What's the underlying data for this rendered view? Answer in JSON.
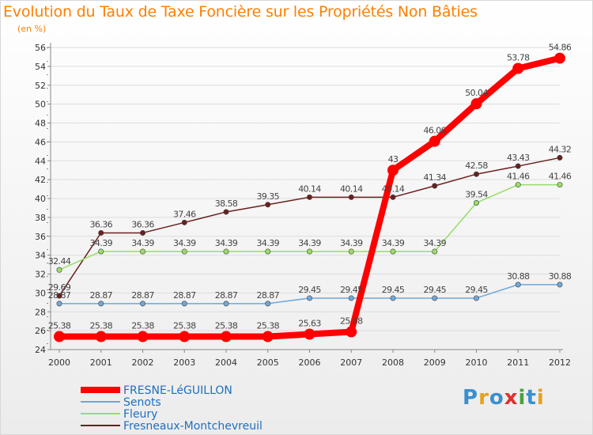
{
  "title": "Evolution du Taux de Taxe Foncière sur les Propriétés Non Bâties",
  "unit": "(en %)",
  "logo": {
    "text": "Proxiti",
    "letters": [
      {
        "ch": "P",
        "color": "#3a8fd0"
      },
      {
        "ch": "r",
        "color": "#e8a020"
      },
      {
        "ch": "o",
        "color": "#3a8fd0"
      },
      {
        "ch": "x",
        "color": "#e03030"
      },
      {
        "ch": "i",
        "color": "#4aa040"
      },
      {
        "ch": "t",
        "color": "#3a8fd0"
      },
      {
        "ch": "i",
        "color": "#e8a020"
      }
    ]
  },
  "chart_data": {
    "type": "line",
    "title": "Evolution du Taux de Taxe Foncière sur les Propriétés Non Bâties",
    "ylabel": "(en %)",
    "xlabel": "",
    "ylim": [
      24,
      56
    ],
    "yticks": [
      24,
      26,
      28,
      30,
      32,
      34,
      36,
      38,
      40,
      42,
      44,
      46,
      48,
      50,
      52,
      54,
      56
    ],
    "x": [
      "2000",
      "2001",
      "2002",
      "2003",
      "2004",
      "2005",
      "2006",
      "2007",
      "2008",
      "2009",
      "2010",
      "2011",
      "2012"
    ],
    "grid": "horizontal",
    "legend_position": "bottom-left",
    "series": [
      {
        "name": "Fresneaux-Montchevreuil",
        "color": "#6b1f1f",
        "values": [
          29.69,
          36.36,
          36.36,
          37.46,
          38.58,
          39.35,
          40.14,
          40.14,
          40.14,
          41.34,
          42.58,
          43.43,
          44.32
        ],
        "labels": [
          "29.69",
          "36.36",
          "36.36",
          "37.46",
          "38.58",
          "39.35",
          "40.14",
          "40.14",
          "40.14",
          "41.34",
          "42.58",
          "43.43",
          "44.32"
        ]
      },
      {
        "name": "Fleury",
        "color": "#99dd66",
        "values": [
          32.44,
          34.39,
          34.39,
          34.39,
          34.39,
          34.39,
          34.39,
          34.39,
          34.39,
          34.39,
          39.54,
          41.46,
          41.46
        ],
        "labels": [
          "32.44",
          "34.39",
          "34.39",
          "34.39",
          "34.39",
          "34.39",
          "34.39",
          "34.39",
          "34.39",
          "34.39",
          "39.54",
          "41.46",
          "41.46"
        ]
      },
      {
        "name": "Senots",
        "color": "#6fa8d8",
        "values": [
          28.87,
          28.87,
          28.87,
          28.87,
          28.87,
          28.87,
          29.45,
          29.45,
          29.45,
          29.45,
          29.45,
          30.88,
          30.88
        ],
        "labels": [
          "28.87",
          "28.87",
          "28.87",
          "28.87",
          "28.87",
          "28.87",
          "29.45",
          "29.45",
          "29.45",
          "29.45",
          "29.45",
          "30.88",
          "30.88"
        ]
      },
      {
        "name": "FRESNE-LéGUILLON",
        "color": "#ff0000",
        "values": [
          25.38,
          25.38,
          25.38,
          25.38,
          25.38,
          25.38,
          25.63,
          25.88,
          43,
          46.06,
          50.04,
          53.78,
          54.86
        ],
        "labels": [
          "25.38",
          "25.38",
          "25.38",
          "25.38",
          "25.38",
          "25.38",
          "25.63",
          "25.88",
          "43",
          "46.06",
          "50.04",
          "53.78",
          "54.86"
        ]
      }
    ],
    "legend_order": [
      "FRESNE-LéGUILLON",
      "Senots",
      "Fleury",
      "Fresneaux-Montchevreuil"
    ]
  }
}
